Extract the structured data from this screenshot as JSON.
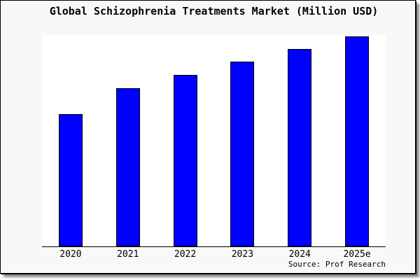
{
  "panel": {
    "background": "#f8f8f8",
    "border_color": "#000000",
    "plot_background": "#ffffff"
  },
  "title": "Global Schizophrenia Treatments Market (Million USD)",
  "source": "Source: Prof Research",
  "chart_data": {
    "type": "bar",
    "title": "Global Schizophrenia Treatments Market (Million USD)",
    "categories": [
      "2020",
      "2021",
      "2022",
      "2023",
      "2024",
      "2025e"
    ],
    "values": [
      62.6,
      74.8,
      81.1,
      87.4,
      93.4,
      99.3
    ],
    "value_unit": "percent of plot height (chart shows no y-axis tick labels)",
    "xlabel": "",
    "ylabel": "",
    "ylim": [
      0,
      100
    ],
    "grid": false,
    "legend": false,
    "axis_lines": "x-axis only",
    "bar_color": "#0000ff",
    "bar_border_color": "#000000",
    "source_annotation": "Source: Prof Research",
    "source_position": "bottom-right"
  }
}
